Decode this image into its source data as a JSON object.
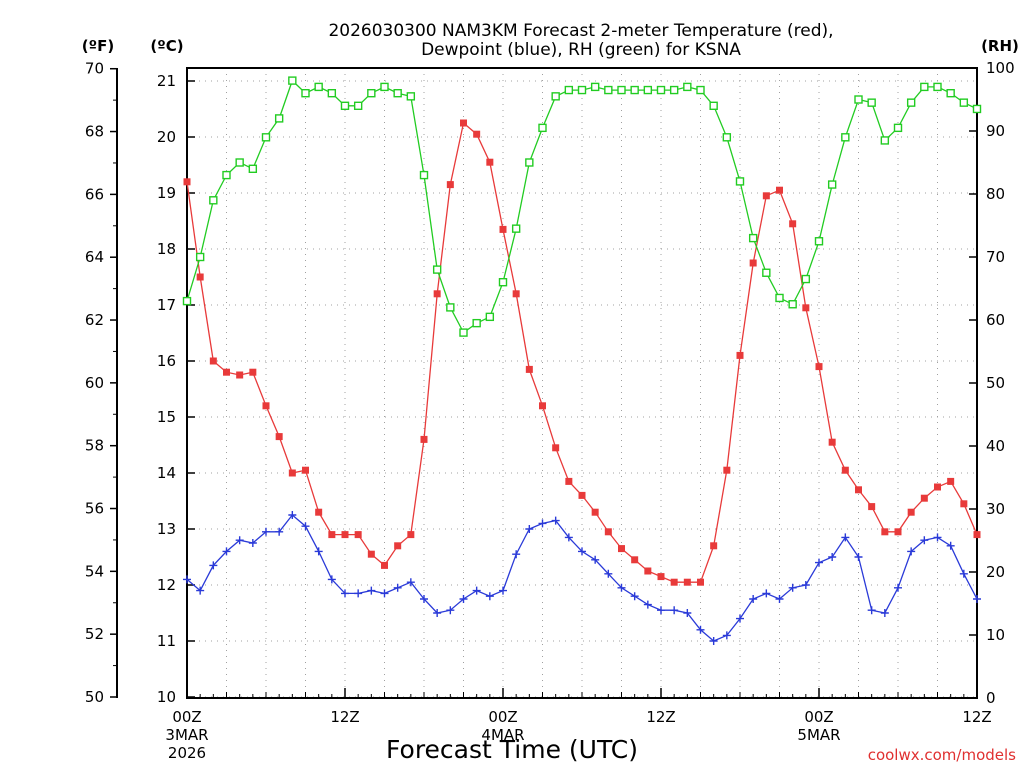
{
  "chart_data": {
    "type": "line",
    "title_line1": "2026030300 NAM3KM Forecast 2-meter Temperature (red),",
    "title_line2": "Dewpoint (blue), RH (green) for KSNA",
    "xlabel": "Forecast Time (UTC)",
    "credit": "coolwx.com/models",
    "unit_f": "(ºF)",
    "unit_c": "(ºC)",
    "unit_rh": "(RH)",
    "x_ticks": [
      {
        "h": 0,
        "label": "00Z",
        "date": "3MAR",
        "year": "2026"
      },
      {
        "h": 12,
        "label": "12Z",
        "date": "",
        "year": ""
      },
      {
        "h": 24,
        "label": "00Z",
        "date": "4MAR",
        "year": ""
      },
      {
        "h": 36,
        "label": "12Z",
        "date": "",
        "year": ""
      },
      {
        "h": 48,
        "label": "00Z",
        "date": "5MAR",
        "year": ""
      },
      {
        "h": 60,
        "label": "12Z",
        "date": "",
        "year": ""
      }
    ],
    "x_range_hours": [
      0,
      60
    ],
    "temp_c_axis": {
      "range": [
        10,
        21
      ],
      "ticks": [
        "10",
        "11",
        "12",
        "13",
        "14",
        "15",
        "16",
        "17",
        "18",
        "19",
        "20",
        "21"
      ]
    },
    "temp_f_axis": {
      "range": [
        50,
        69.8
      ],
      "ticks": [
        "50",
        "52",
        "54",
        "56",
        "58",
        "60",
        "62",
        "64",
        "66",
        "68",
        "70"
      ]
    },
    "rh_axis": {
      "range": [
        0,
        100
      ],
      "ticks": [
        "0",
        "10",
        "20",
        "30",
        "40",
        "50",
        "60",
        "70",
        "80",
        "90",
        "100"
      ]
    },
    "grid": true,
    "series": [
      {
        "name": "Temperature",
        "unit": "C",
        "color": "#e83a3a",
        "marker": "filled-square",
        "values": [
          19.2,
          17.5,
          16.0,
          15.8,
          15.75,
          15.8,
          15.2,
          14.65,
          14.0,
          14.05,
          13.3,
          12.9,
          12.9,
          12.9,
          12.55,
          12.35,
          12.7,
          12.9,
          14.6,
          17.2,
          19.15,
          20.25,
          20.05,
          19.55,
          18.35,
          17.2,
          15.85,
          15.2,
          14.45,
          13.85,
          13.6,
          13.3,
          12.95,
          12.65,
          12.45,
          12.25,
          12.15,
          12.05,
          12.05,
          12.05,
          12.7,
          14.05,
          16.1,
          17.75,
          18.95,
          19.05,
          18.45,
          16.95,
          15.9,
          14.55,
          14.05,
          13.7,
          13.4,
          12.95,
          12.95,
          13.3,
          13.55,
          13.75,
          13.85,
          13.45,
          12.9
        ]
      },
      {
        "name": "Dewpoint",
        "unit": "C",
        "color": "#2a3ad8",
        "marker": "plus",
        "values": [
          12.1,
          11.9,
          12.35,
          12.6,
          12.8,
          12.75,
          12.95,
          12.95,
          13.25,
          13.05,
          12.6,
          12.1,
          11.85,
          11.85,
          11.9,
          11.85,
          11.95,
          12.05,
          11.75,
          11.5,
          11.55,
          11.75,
          11.9,
          11.8,
          11.9,
          12.55,
          13.0,
          13.1,
          13.15,
          12.85,
          12.6,
          12.45,
          12.2,
          11.95,
          11.8,
          11.65,
          11.55,
          11.55,
          11.5,
          11.2,
          11.0,
          11.1,
          11.4,
          11.75,
          11.85,
          11.75,
          11.95,
          12.0,
          12.4,
          12.5,
          12.85,
          12.5,
          11.55,
          11.5,
          11.95,
          12.6,
          12.8,
          12.85,
          12.7,
          12.2,
          11.75
        ]
      },
      {
        "name": "RH",
        "unit": "%",
        "color": "#22cc22",
        "marker": "open-square",
        "values": [
          63,
          70,
          79,
          83,
          85,
          84,
          89,
          92,
          98,
          96,
          97,
          96,
          94,
          94,
          96,
          97,
          96,
          95.5,
          83,
          68,
          62,
          58,
          59.5,
          60.5,
          66,
          74.5,
          85,
          90.5,
          95.5,
          96.5,
          96.5,
          97,
          96.5,
          96.5,
          96.5,
          96.5,
          96.5,
          96.5,
          97,
          96.5,
          94,
          89,
          82,
          73,
          67.5,
          63.5,
          62.5,
          66.5,
          72.5,
          81.5,
          89,
          95,
          94.5,
          88.5,
          90.5,
          94.5,
          97,
          97,
          96,
          94.5,
          93.5
        ]
      }
    ]
  }
}
